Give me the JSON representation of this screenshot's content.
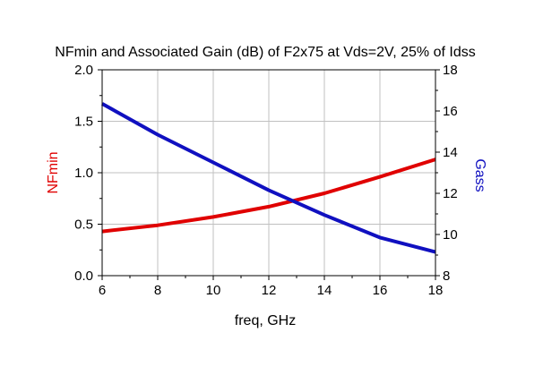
{
  "chart_data": {
    "type": "line",
    "title": "NFmin and Associated Gain (dB) of F2x75 at Vds=2V, 25% of Idss",
    "xlabel": "freq, GHz",
    "ylabel_left": "NFmin",
    "ylabel_right": "Gass",
    "xlim": [
      6,
      18
    ],
    "ylim_left": [
      0.0,
      2.0
    ],
    "ylim_right": [
      8,
      18
    ],
    "x_ticks": [
      "6",
      "8",
      "10",
      "12",
      "14",
      "16",
      "18"
    ],
    "y_left_ticks": [
      "0.0",
      "0.5",
      "1.0",
      "1.5",
      "2.0"
    ],
    "y_right_ticks": [
      "8",
      "10",
      "12",
      "14",
      "16",
      "18"
    ],
    "grid": true,
    "series": [
      {
        "name": "NFmin",
        "axis": "left",
        "color": "#e00000",
        "x": [
          6,
          8,
          10,
          12,
          14,
          16,
          18
        ],
        "y": [
          0.43,
          0.49,
          0.57,
          0.67,
          0.8,
          0.96,
          1.13
        ]
      },
      {
        "name": "Gass",
        "axis": "right",
        "color": "#1010c0",
        "x": [
          6,
          8,
          10,
          12,
          14,
          16,
          18
        ],
        "y": [
          16.35,
          14.85,
          13.5,
          12.15,
          10.95,
          9.85,
          9.15
        ]
      }
    ]
  }
}
